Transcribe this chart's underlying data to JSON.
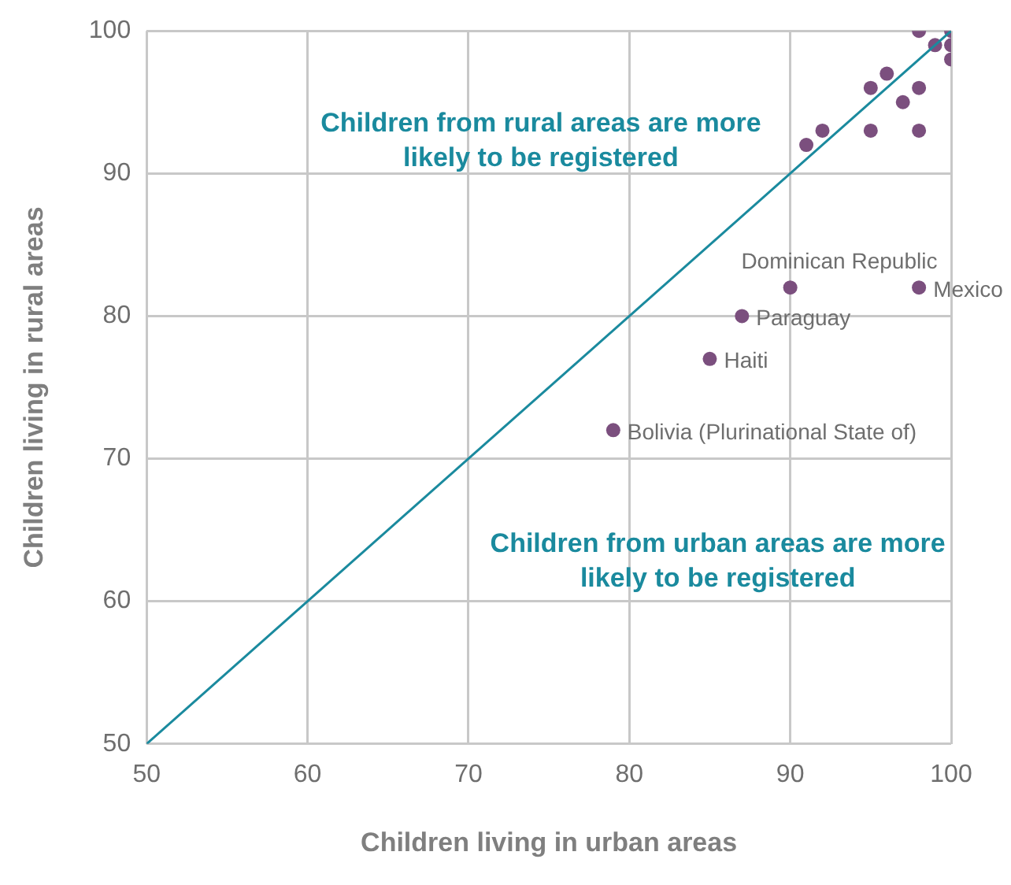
{
  "chart_data": {
    "type": "scatter",
    "xlabel": "Children living in urban areas",
    "ylabel": "Children living in rural areas",
    "xlim": [
      50,
      100
    ],
    "xticks": [
      50,
      60,
      70,
      80,
      90,
      100
    ],
    "ylim": [
      50,
      100
    ],
    "yticks": [
      50,
      60,
      70,
      80,
      90,
      100
    ],
    "grid": true,
    "legend": false,
    "marker": "circle",
    "series": [
      {
        "type": "line",
        "marker": "none",
        "color": "#1a8a9e",
        "x": [
          50,
          100
        ],
        "values": [
          50,
          100
        ]
      },
      {
        "color": "#7b4f7e",
        "x": [
          98,
          100,
          99,
          100,
          100,
          96,
          95,
          98,
          97,
          92,
          91,
          95,
          98,
          90,
          98,
          87,
          85,
          79
        ],
        "values": [
          100,
          100,
          99,
          99,
          98,
          97,
          96,
          96,
          95,
          93,
          92,
          93,
          93,
          82,
          82,
          80,
          77,
          72
        ]
      }
    ],
    "annotations": [
      "Children from rural areas are more likely to be registered",
      "Children from urban areas are more likely to be registered",
      {
        "text": "Dominican Republic",
        "x": 90,
        "y": 82
      },
      {
        "text": "Mexico",
        "x": 98,
        "y": 82
      },
      {
        "text": "Paraguay",
        "x": 87,
        "y": 80
      },
      {
        "text": "Haiti",
        "x": 85,
        "y": 77
      },
      {
        "text": "Bolivia (Plurinational State of)",
        "x": 79,
        "y": 72
      }
    ]
  }
}
